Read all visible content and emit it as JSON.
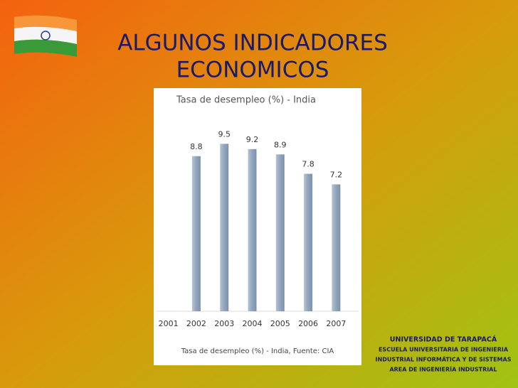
{
  "slide_title": [
    "ALGUNOS INDICADORES",
    "ECONOMICOS"
  ],
  "chart_data": {
    "type": "bar",
    "title": "Tasa de desempleo (%) - India",
    "categories": [
      "2001",
      "2002",
      "2003",
      "2004",
      "2005",
      "2006",
      "2007"
    ],
    "values": [
      null,
      8.8,
      9.5,
      9.2,
      8.9,
      7.8,
      7.2
    ],
    "color": "#90a4bb",
    "ylim": [
      0,
      10
    ],
    "caption": "Tasa de desempleo (%) - India, Fuente: CIA"
  },
  "footer": [
    "UNIVERSIDAD  DE  TARAPACÁ",
    "ESCUELA  UNIVERSITARIA  DE  INGENIERIA",
    "INDUSTRIAL  INFORMÁTICA Y DE SISTEMAS",
    "AREA DE INGENIERÍA INDUSTRIAL"
  ]
}
